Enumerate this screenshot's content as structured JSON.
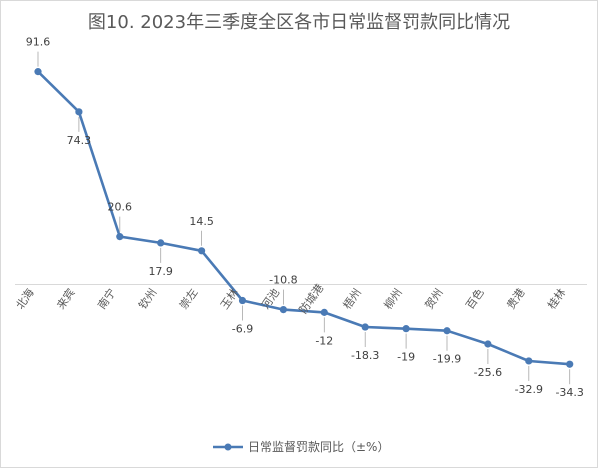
{
  "chart_data": {
    "type": "line",
    "title": "图10. 2023年三季度全区各市日常监督罚款同比情况",
    "categories": [
      "北海",
      "来宾",
      "南宁",
      "钦州",
      "崇左",
      "玉林",
      "河池",
      "防城港",
      "梧州",
      "柳州",
      "贺州",
      "百色",
      "贵港",
      "桂林"
    ],
    "series": [
      {
        "name": "日常监督罚款同比（±%）",
        "values": [
          91.6,
          74.3,
          20.6,
          17.9,
          14.5,
          -6.9,
          -10.8,
          -12,
          -18.3,
          -19,
          -19.9,
          -25.6,
          -32.9,
          -34.3
        ],
        "labels": [
          "91.6",
          "74.3",
          "20.6",
          "17.9",
          "14.5",
          "-6.9",
          "-10.8",
          "-12",
          "-18.3",
          "-19",
          "-19.9",
          "-25.6",
          "-32.9",
          "-34.3"
        ],
        "color": "#4a7ab5"
      }
    ],
    "xlabel": "",
    "ylabel": "",
    "legend": "bottom",
    "grid": false
  }
}
